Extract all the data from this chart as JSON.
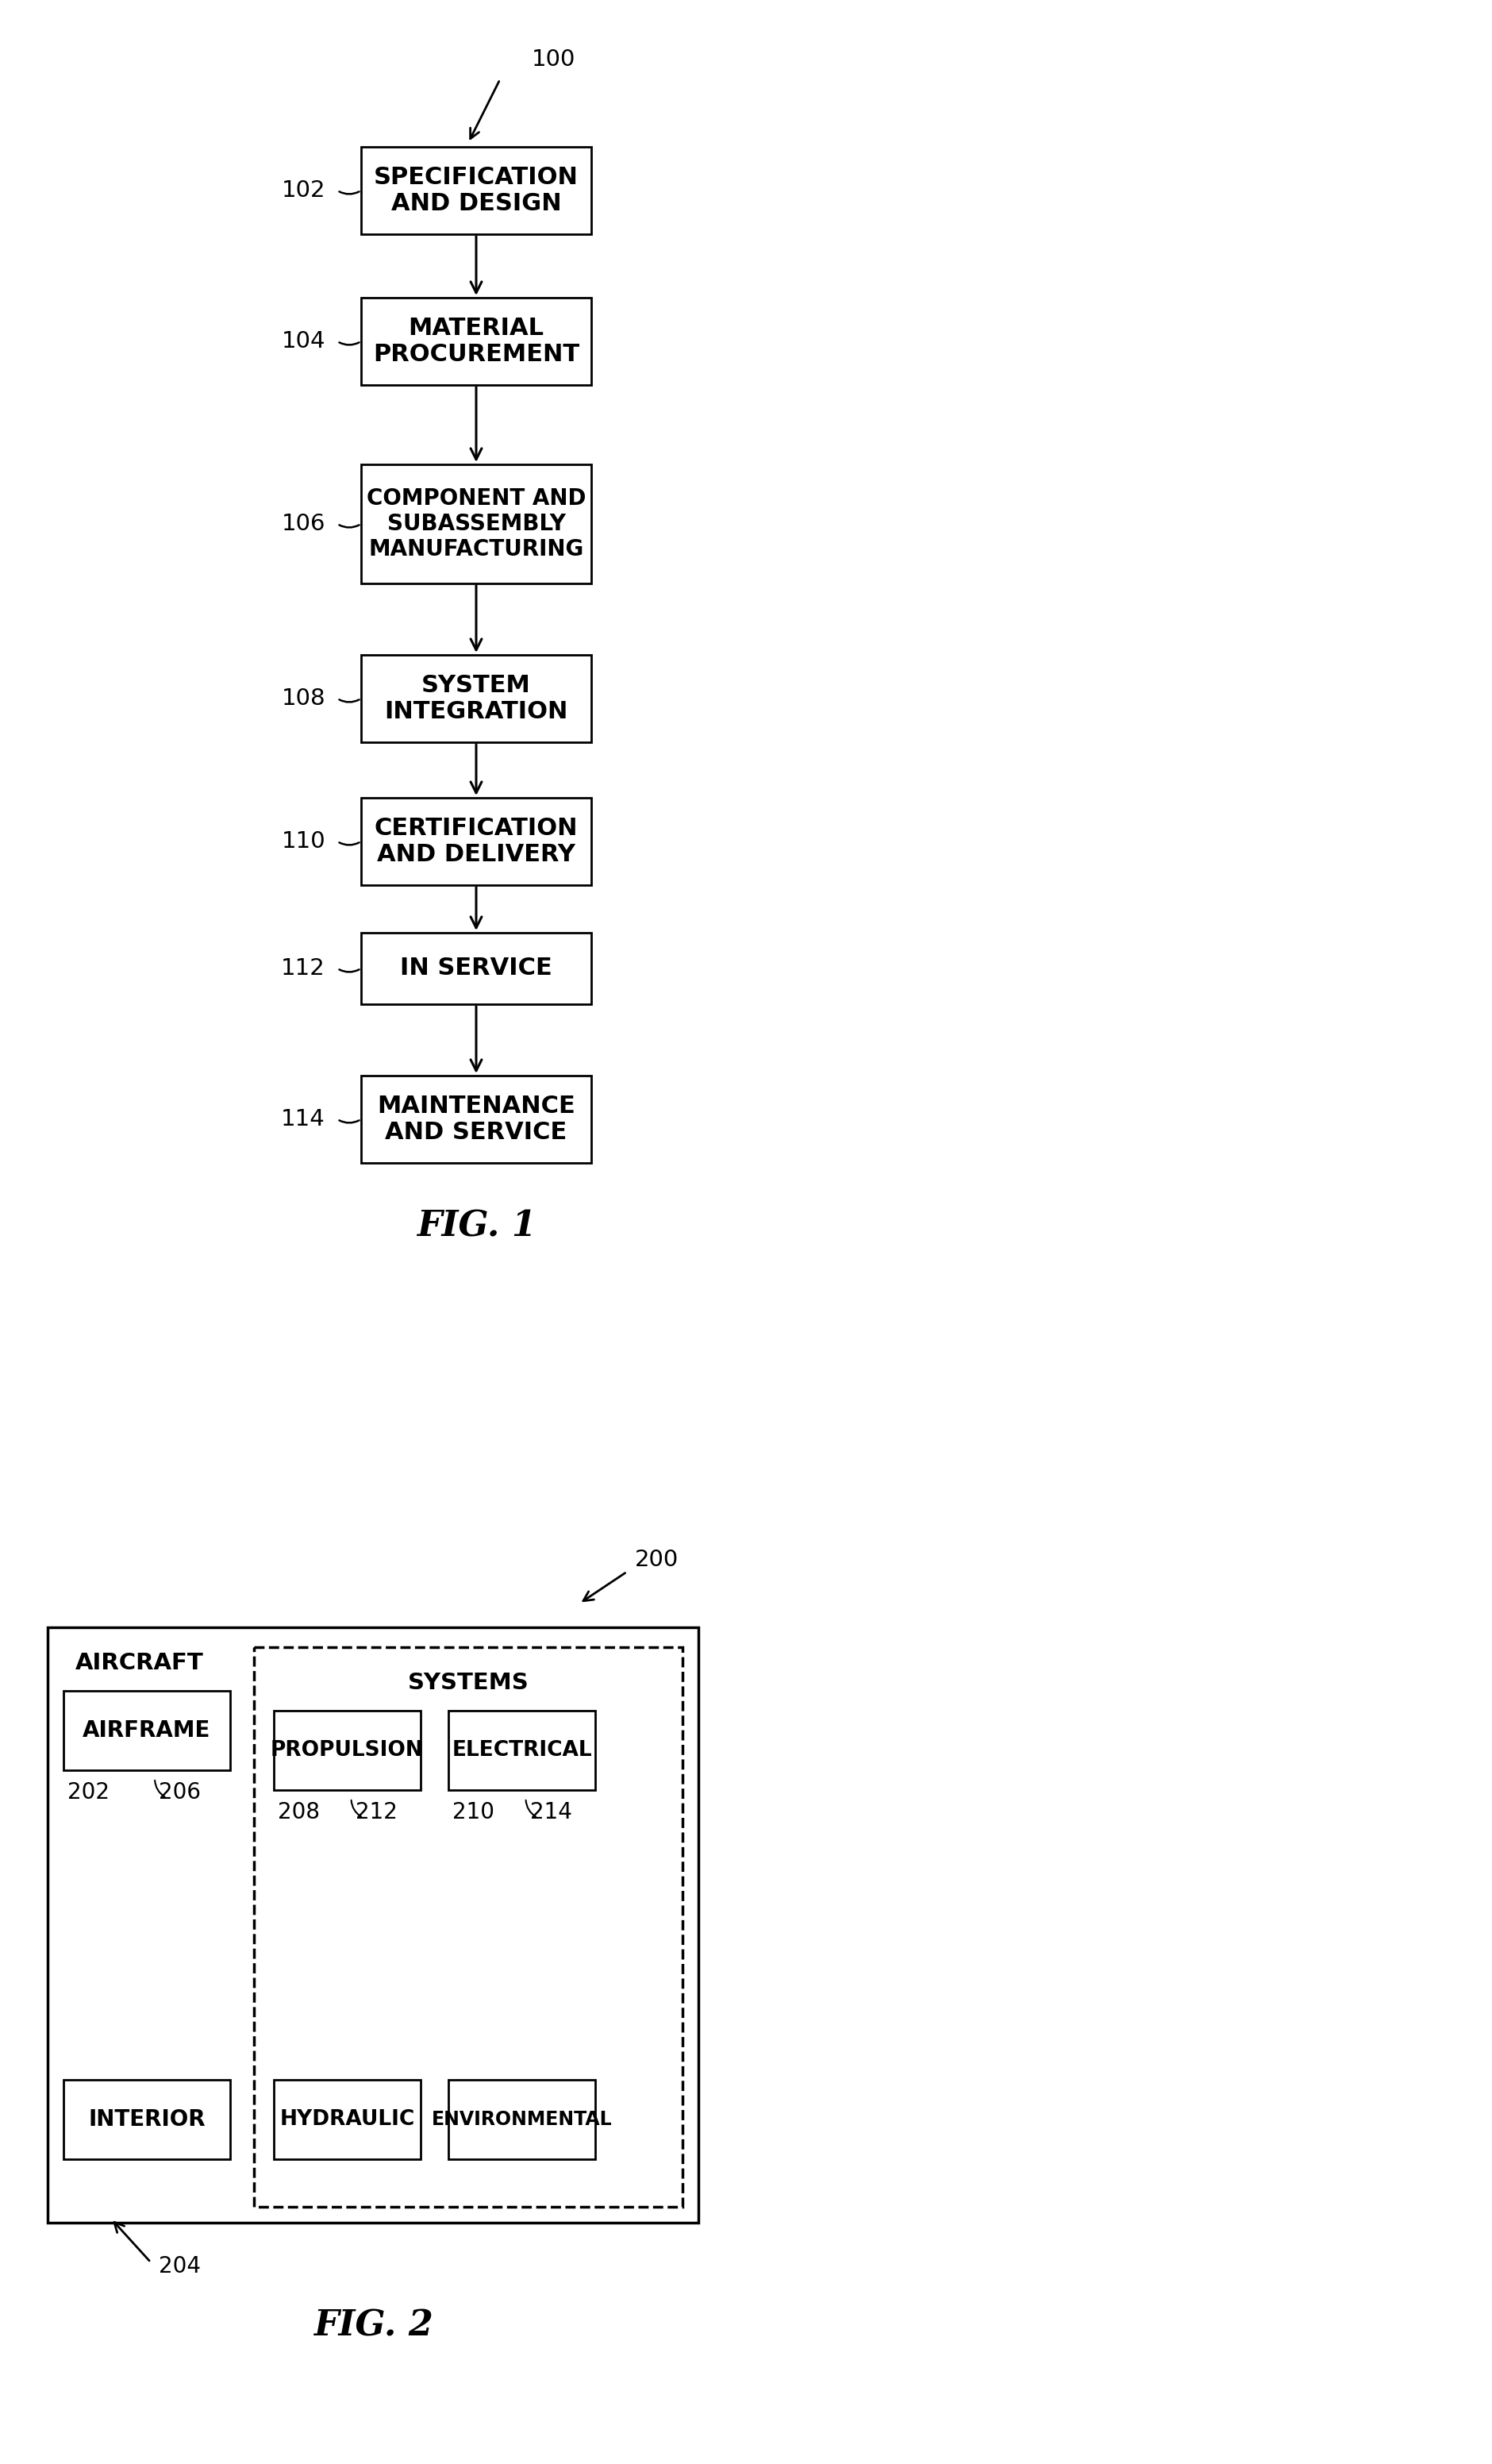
{
  "fig1_title": "FIG. 1",
  "fig2_title": "FIG. 2",
  "bg_color": "#ffffff",
  "box_color": "#ffffff",
  "line_color": "#000000",
  "text_color": "#000000",
  "fig1_boxes": [
    {
      "label": "SPECIFICATION\nAND DESIGN",
      "ref": "102"
    },
    {
      "label": "MATERIAL\nPROCUREMENT",
      "ref": "104"
    },
    {
      "label": "COMPONENT AND\nSUBASSEMBLY\nMANUFACTURING",
      "ref": "106"
    },
    {
      "label": "SYSTEM\nINTEGRATION",
      "ref": "108"
    },
    {
      "label": "CERTIFICATION\nAND DELIVERY",
      "ref": "110"
    },
    {
      "label": "IN SERVICE",
      "ref": "112"
    },
    {
      "label": "MAINTENANCE\nAND SERVICE",
      "ref": "114"
    }
  ],
  "fig2_aircraft_label": "AIRCRAFT",
  "fig2_systems_label": "SYSTEMS"
}
